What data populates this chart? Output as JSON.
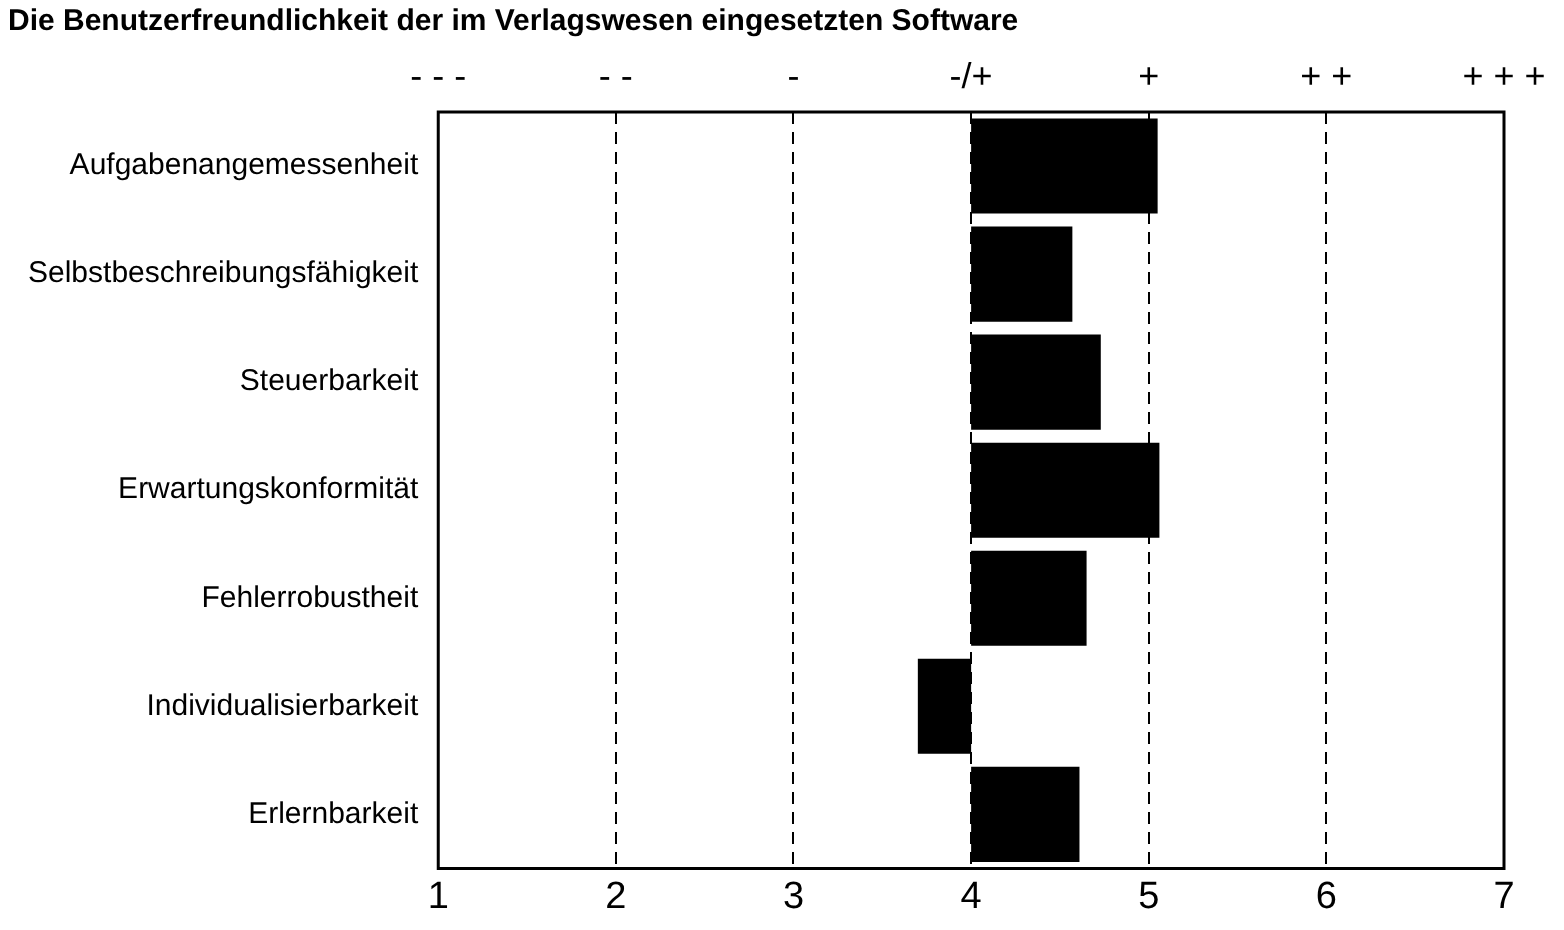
{
  "chart_data": {
    "type": "bar",
    "orientation": "horizontal",
    "title": "Die Benutzerfreundlichkeit der im Verlagswesen eingesetzten Software",
    "categories": [
      "Aufgabenangemessenheit",
      "Selbstbeschreibungsfähigkeit",
      "Steuerbarkeit",
      "Erwartungskonformität",
      "Fehlerrobustheit",
      "Individualisierbarkeit",
      "Erlernbarkeit"
    ],
    "base": [
      4,
      4,
      4,
      4,
      4,
      4,
      4
    ],
    "values": [
      1.05,
      0.57,
      0.73,
      1.06,
      0.65,
      -0.3,
      0.61
    ],
    "color": "#000000",
    "xlim": [
      1,
      7
    ],
    "xticks": [
      1,
      2,
      3,
      4,
      5,
      6,
      7
    ],
    "annotations": [
      "- - -",
      "- -",
      "-",
      "-/+",
      "+",
      "+ +",
      "+ + +"
    ],
    "grid": "x"
  }
}
